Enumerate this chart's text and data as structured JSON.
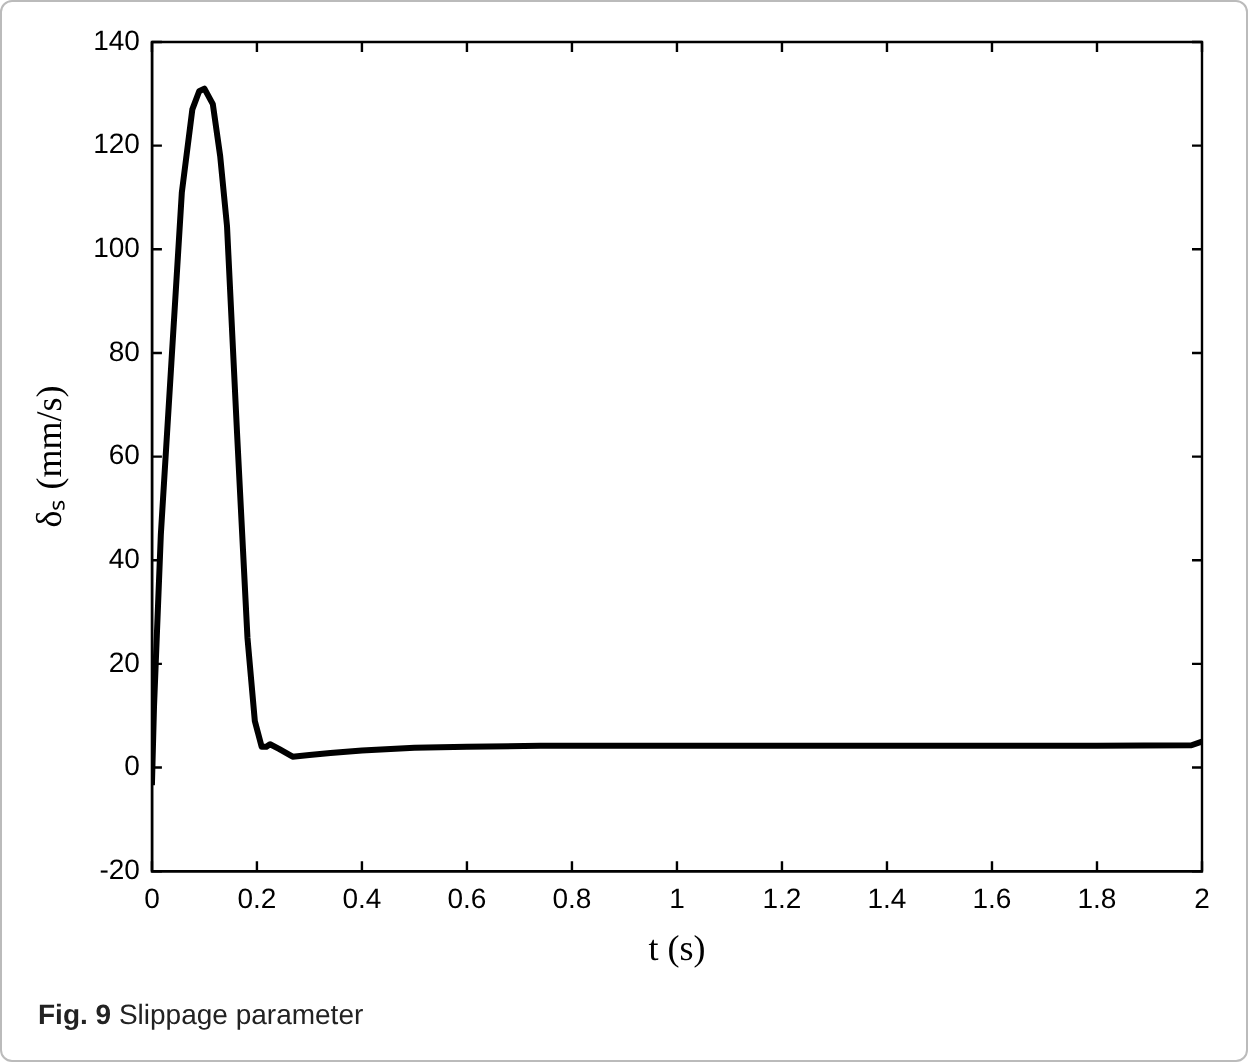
{
  "chart_data": {
    "type": "line",
    "xlabel": "t (s)",
    "ylabel": "δₛ (mm/s)",
    "annotations": [
      "Fig. 9 Slippage parameter"
    ],
    "x": [
      0,
      0.004,
      0.017,
      0.037,
      0.057,
      0.077,
      0.09,
      0.1,
      0.116,
      0.13,
      0.143,
      0.162,
      0.182,
      0.196,
      0.209,
      0.218,
      0.225,
      0.242,
      0.268,
      0.3,
      0.34,
      0.4,
      0.5,
      0.6,
      0.74,
      1,
      1.2,
      1.4,
      1.6,
      1.8,
      1.98,
      2
    ],
    "series": [
      {
        "color": "#000000",
        "values": [
          -3.4,
          11.8,
          45,
          78,
          111,
          127,
          130.5,
          131,
          128,
          118,
          104.5,
          64.8,
          25,
          9,
          4,
          4,
          4.5,
          3.6,
          2.1,
          2.4,
          2.8,
          3.3,
          3.8,
          4,
          4.2,
          4.2,
          4.2,
          4.2,
          4.2,
          4.2,
          4.3,
          5
        ]
      }
    ],
    "xlim": [
      0,
      2
    ],
    "xticks": [
      0,
      0.2,
      0.4,
      0.6,
      0.8,
      1,
      1.2,
      1.4,
      1.6,
      1.8,
      2
    ],
    "ylim": [
      -20,
      140
    ],
    "yticks": [
      -20,
      0,
      20,
      40,
      60,
      80,
      100,
      120,
      140
    ],
    "grid": false,
    "legend": false,
    "marker": "none",
    "line_style": "solid"
  }
}
